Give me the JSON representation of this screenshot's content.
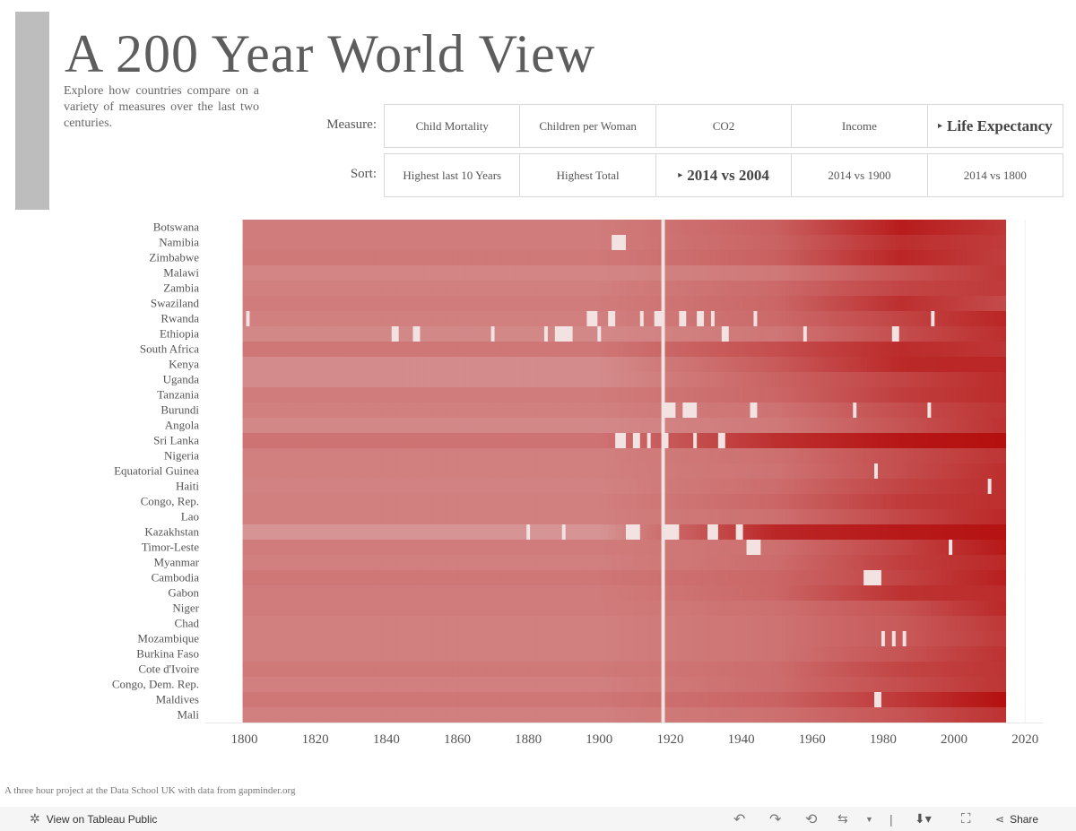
{
  "header": {
    "title": "A 200 Year World View",
    "subtitle": "Explore how countries compare on a variety of measures over the last two centuries."
  },
  "controls": {
    "measure_label": "Measure:",
    "measure_options": [
      "Child Mortality",
      "Children per Woman",
      "CO2",
      "Income",
      "Life Expectancy"
    ],
    "measure_selected": "Life Expectancy",
    "sort_label": "Sort:",
    "sort_options": [
      "Highest last 10 Years",
      "Highest Total",
      "2014 vs 2004",
      "2014 vs 1900",
      "2014 vs 1800"
    ],
    "sort_selected": "2014 vs 2004"
  },
  "chart_data": {
    "type": "heatmap",
    "title": "",
    "xlabel": "",
    "ylabel": "",
    "xlim": [
      1789,
      2025
    ],
    "x_ticks": [
      1800,
      1820,
      1840,
      1860,
      1880,
      1900,
      1920,
      1940,
      1960,
      1980,
      2000,
      2020
    ],
    "year_range": [
      1800,
      2014
    ],
    "color_scale": {
      "low": "#dcaaaa",
      "high": "#b51010"
    },
    "countries": [
      {
        "name": "Botswana",
        "pre1900": 0.3,
        "y1950": 0.48,
        "peak": 0.92,
        "late": 0.75
      },
      {
        "name": "Namibia",
        "pre1900": 0.3,
        "y1950": 0.46,
        "peak": 0.8,
        "late": 0.72
      },
      {
        "name": "Zimbabwe",
        "pre1900": 0.32,
        "y1950": 0.48,
        "peak": 0.86,
        "late": 0.7
      },
      {
        "name": "Malawi",
        "pre1900": 0.24,
        "y1950": 0.32,
        "peak": 0.56,
        "late": 0.74
      },
      {
        "name": "Zambia",
        "pre1900": 0.28,
        "y1950": 0.42,
        "peak": 0.66,
        "late": 0.72
      },
      {
        "name": "Swaziland",
        "pre1900": 0.3,
        "y1950": 0.44,
        "peak": 0.8,
        "late": 0.62
      },
      {
        "name": "Rwanda",
        "pre1900": 0.28,
        "y1950": 0.42,
        "peak": 0.66,
        "late": 0.86
      },
      {
        "name": "Ethiopia",
        "pre1900": 0.22,
        "y1950": 0.34,
        "peak": 0.6,
        "late": 0.8
      },
      {
        "name": "South Africa",
        "pre1900": 0.34,
        "y1950": 0.6,
        "peak": 0.82,
        "late": 0.76
      },
      {
        "name": "Kenya",
        "pre1900": 0.2,
        "y1950": 0.52,
        "peak": 0.84,
        "late": 0.86
      },
      {
        "name": "Uganda",
        "pre1900": 0.2,
        "y1950": 0.46,
        "peak": 0.66,
        "late": 0.82
      },
      {
        "name": "Tanzania",
        "pre1900": 0.3,
        "y1950": 0.44,
        "peak": 0.7,
        "late": 0.82
      },
      {
        "name": "Burundi",
        "pre1900": 0.28,
        "y1950": 0.36,
        "peak": 0.6,
        "late": 0.76
      },
      {
        "name": "Angola",
        "pre1900": 0.22,
        "y1950": 0.32,
        "peak": 0.56,
        "late": 0.78
      },
      {
        "name": "Sri Lanka",
        "pre1900": 0.36,
        "y1950": 0.8,
        "peak": 0.96,
        "late": 1.0
      },
      {
        "name": "Nigeria",
        "pre1900": 0.28,
        "y1950": 0.38,
        "peak": 0.6,
        "late": 0.76
      },
      {
        "name": "Equatorial Guinea",
        "pre1900": 0.28,
        "y1950": 0.36,
        "peak": 0.6,
        "late": 0.8
      },
      {
        "name": "Haiti",
        "pre1900": 0.26,
        "y1950": 0.4,
        "peak": 0.66,
        "late": 0.8
      },
      {
        "name": "Congo, Rep.",
        "pre1900": 0.28,
        "y1950": 0.44,
        "peak": 0.72,
        "late": 0.8
      },
      {
        "name": "Lao",
        "pre1900": 0.28,
        "y1950": 0.38,
        "peak": 0.64,
        "late": 0.84
      },
      {
        "name": "Kazakhstan",
        "pre1900": 0.14,
        "y1950": 0.86,
        "peak": 0.94,
        "late": 0.98
      },
      {
        "name": "Timor-Leste",
        "pre1900": 0.3,
        "y1950": 0.38,
        "peak": 0.66,
        "late": 0.94
      },
      {
        "name": "Myanmar",
        "pre1900": 0.28,
        "y1950": 0.4,
        "peak": 0.7,
        "late": 0.84
      },
      {
        "name": "Cambodia",
        "pre1900": 0.34,
        "y1950": 0.44,
        "peak": 0.66,
        "late": 0.9
      },
      {
        "name": "Gabon",
        "pre1900": 0.3,
        "y1950": 0.44,
        "peak": 0.78,
        "late": 0.82
      },
      {
        "name": "Niger",
        "pre1900": 0.3,
        "y1950": 0.38,
        "peak": 0.56,
        "late": 0.84
      },
      {
        "name": "Chad",
        "pre1900": 0.28,
        "y1950": 0.36,
        "peak": 0.52,
        "late": 0.74
      },
      {
        "name": "Mozambique",
        "pre1900": 0.28,
        "y1950": 0.36,
        "peak": 0.52,
        "late": 0.72
      },
      {
        "name": "Burkina Faso",
        "pre1900": 0.28,
        "y1950": 0.36,
        "peak": 0.56,
        "late": 0.78
      },
      {
        "name": "Cote d'Ivoire",
        "pre1900": 0.32,
        "y1950": 0.4,
        "peak": 0.66,
        "late": 0.76
      },
      {
        "name": "Congo, Dem. Rep.",
        "pre1900": 0.28,
        "y1950": 0.4,
        "peak": 0.6,
        "late": 0.76
      },
      {
        "name": "Maldives",
        "pre1900": 0.34,
        "y1950": 0.46,
        "peak": 0.74,
        "late": 1.0
      },
      {
        "name": "Mali",
        "pre1900": 0.28,
        "y1950": 0.38,
        "peak": 0.56,
        "late": 0.78
      }
    ],
    "pale_years": {
      "all": [
        1918
      ],
      "Namibia": [
        1904,
        1905,
        1906,
        1907
      ],
      "Rwanda": [
        1801,
        1897,
        1898,
        1899,
        1903,
        1904,
        1912,
        1916,
        1917,
        1923,
        1924,
        1928,
        1929,
        1932,
        1944,
        1994
      ],
      "Ethiopia": [
        1842,
        1843,
        1848,
        1849,
        1870,
        1885,
        1888,
        1889,
        1890,
        1891,
        1892,
        1900,
        1935,
        1936,
        1958,
        1983,
        1984
      ],
      "Sri Lanka": [
        1905,
        1906,
        1907,
        1910,
        1911,
        1914,
        1919,
        1927,
        1934,
        1935
      ],
      "Burundi": [
        1919,
        1920,
        1921,
        1924,
        1925,
        1926,
        1927,
        1943,
        1944,
        1972,
        1993
      ],
      "Equatorial Guinea": [
        1978
      ],
      "Haiti": [
        2010
      ],
      "Kazakhstan": [
        1880,
        1890,
        1908,
        1909,
        1910,
        1911,
        1918,
        1919,
        1920,
        1921,
        1922,
        1931,
        1932,
        1933,
        1939,
        1940
      ],
      "Timor-Leste": [
        1942,
        1943,
        1944,
        1945,
        1999
      ],
      "Cambodia": [
        1975,
        1976,
        1977,
        1978,
        1979
      ],
      "Mozambique": [
        1980,
        1983,
        1986
      ],
      "Maldives": [
        1978,
        1979
      ]
    }
  },
  "footer": {
    "note": "A three hour project at the Data School UK with data from gapminder.org"
  },
  "toolbar": {
    "view_label": "View on Tableau Public",
    "share_label": "Share"
  }
}
